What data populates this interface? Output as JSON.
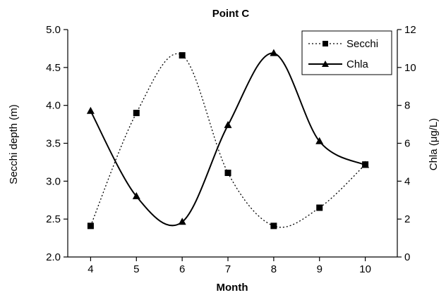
{
  "chart_data": {
    "type": "line",
    "title": "Point C",
    "xlabel": "Month",
    "ylabel_left": "Secchi depth (m)",
    "ylabel_right": "Chla (μg/L)",
    "x": [
      4,
      5,
      6,
      7,
      8,
      9,
      10
    ],
    "x_ticks": [
      "4",
      "5",
      "6",
      "7",
      "8",
      "9",
      "10"
    ],
    "ylim_left": [
      2.0,
      5.0
    ],
    "y_ticks_left": [
      "2.0",
      "2.5",
      "3.0",
      "3.5",
      "4.0",
      "4.5",
      "5.0"
    ],
    "ylim_right": [
      0,
      12
    ],
    "y_ticks_right": [
      "0",
      "2",
      "4",
      "6",
      "8",
      "10",
      "12"
    ],
    "grid": false,
    "legend_position": "top-right",
    "series": [
      {
        "name": "Secchi",
        "axis": "left",
        "line_style": "dotted",
        "marker": "square",
        "values": [
          2.41,
          3.9,
          4.66,
          3.11,
          2.41,
          2.65,
          3.22
        ]
      },
      {
        "name": "Chla",
        "axis": "right",
        "line_style": "solid",
        "marker": "triangle",
        "values": [
          7.7,
          3.2,
          1.85,
          6.95,
          10.75,
          6.1,
          4.85
        ]
      }
    ]
  }
}
